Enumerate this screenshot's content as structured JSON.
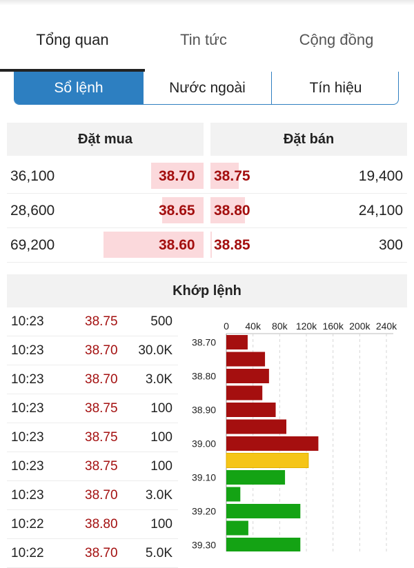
{
  "tabs": [
    {
      "label": "Tổng quan",
      "active": true
    },
    {
      "label": "Tin tức",
      "active": false
    },
    {
      "label": "Cộng đồng",
      "active": false
    }
  ],
  "subtabs": [
    {
      "label": "Sổ lệnh",
      "active": true
    },
    {
      "label": "Nước ngoài",
      "active": false
    },
    {
      "label": "Tín hiệu",
      "active": false
    }
  ],
  "orderbook": {
    "buy_header": "Đặt mua",
    "sell_header": "Đặt bán",
    "rows": [
      {
        "buy_volume": "36,100",
        "buy_price": "38.70",
        "sell_price": "38.75",
        "sell_volume": "19,400"
      },
      {
        "buy_volume": "28,600",
        "buy_price": "38.65",
        "sell_price": "38.80",
        "sell_volume": "24,100"
      },
      {
        "buy_volume": "69,200",
        "buy_price": "38.60",
        "sell_price": "38.85",
        "sell_volume": "300"
      }
    ],
    "bar_volumes": {
      "buy": [
        36100,
        28600,
        69200
      ],
      "sell": [
        19400,
        24100,
        300
      ]
    }
  },
  "matched": {
    "title": "Khớp lệnh",
    "trades": [
      {
        "time": "10:23",
        "price": "38.75",
        "volume": "500"
      },
      {
        "time": "10:23",
        "price": "38.70",
        "volume": "30.0K"
      },
      {
        "time": "10:23",
        "price": "38.70",
        "volume": "3.0K"
      },
      {
        "time": "10:23",
        "price": "38.75",
        "volume": "100"
      },
      {
        "time": "10:23",
        "price": "38.75",
        "volume": "100"
      },
      {
        "time": "10:23",
        "price": "38.75",
        "volume": "100"
      },
      {
        "time": "10:23",
        "price": "38.70",
        "volume": "3.0K"
      },
      {
        "time": "10:22",
        "price": "38.80",
        "volume": "100"
      },
      {
        "time": "10:22",
        "price": "38.70",
        "volume": "5.0K"
      }
    ]
  },
  "colors": {
    "down": "#a50f0f",
    "reference": "#f5c518",
    "up": "#14a314",
    "accent": "#2d7fc1"
  },
  "chart_data": {
    "type": "bar",
    "orientation": "horizontal",
    "x_ticks": [
      "0",
      "40k",
      "80k",
      "120k",
      "160k",
      "200k",
      "240k"
    ],
    "xlim": [
      0,
      240000
    ],
    "grid": true,
    "y_tick_labels": [
      "38.70",
      "38.80",
      "38.90",
      "39.00",
      "39.10",
      "39.20",
      "39.30"
    ],
    "categories": [
      "38.70",
      "38.75",
      "38.80",
      "38.85",
      "38.90",
      "38.95",
      "39.00",
      "39.05",
      "39.10",
      "39.15",
      "39.20",
      "39.25",
      "39.30"
    ],
    "values": [
      32000,
      58000,
      64000,
      54000,
      74000,
      90000,
      138000,
      123000,
      88000,
      21000,
      111000,
      33000,
      111000
    ],
    "bar_status": [
      "down",
      "down",
      "down",
      "down",
      "down",
      "down",
      "down",
      "reference",
      "up",
      "up",
      "up",
      "up",
      "up"
    ]
  }
}
